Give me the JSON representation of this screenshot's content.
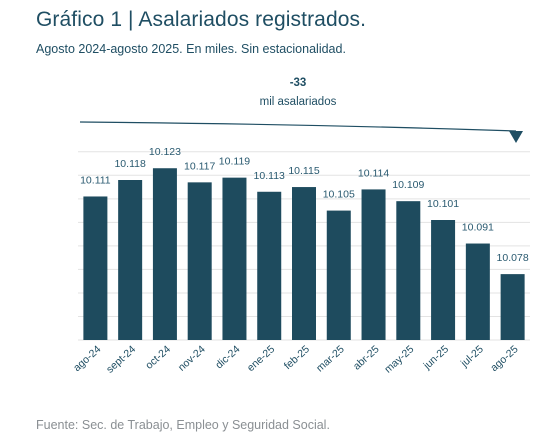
{
  "title": "Gráfico 1 | Asalariados registrados.",
  "subtitle": "Agosto 2024-agosto 2025. En miles. Sin estacionalidad.",
  "source": "Fuente: Sec. de Trabajo, Empleo y Seguridad Social.",
  "colors": {
    "bar": "#1e4b5e",
    "text": "#1f4e63",
    "grid": "#e3e3e3",
    "label": "#2a5a70"
  },
  "chart_data": {
    "type": "bar",
    "categories": [
      "ago-24",
      "sept-24",
      "oct-24",
      "nov-24",
      "dic-24",
      "ene-25",
      "feb-25",
      "mar-25",
      "abr-25",
      "may-25",
      "jun-25",
      "jul-25",
      "ago-25"
    ],
    "values": [
      10111,
      10118,
      10123,
      10117,
      10119,
      10113,
      10115,
      10105,
      10114,
      10109,
      10101,
      10091,
      10078
    ],
    "value_labels": [
      "10.111",
      "10.118",
      "10.123",
      "10.117",
      "10.119",
      "10.113",
      "10.115",
      "10.105",
      "10.114",
      "10.109",
      "10.101",
      "10.091",
      "10.078"
    ],
    "ylim": [
      10050,
      10135
    ],
    "grid": true,
    "annotation": {
      "value": "-33",
      "text": "mil asalariados"
    }
  }
}
